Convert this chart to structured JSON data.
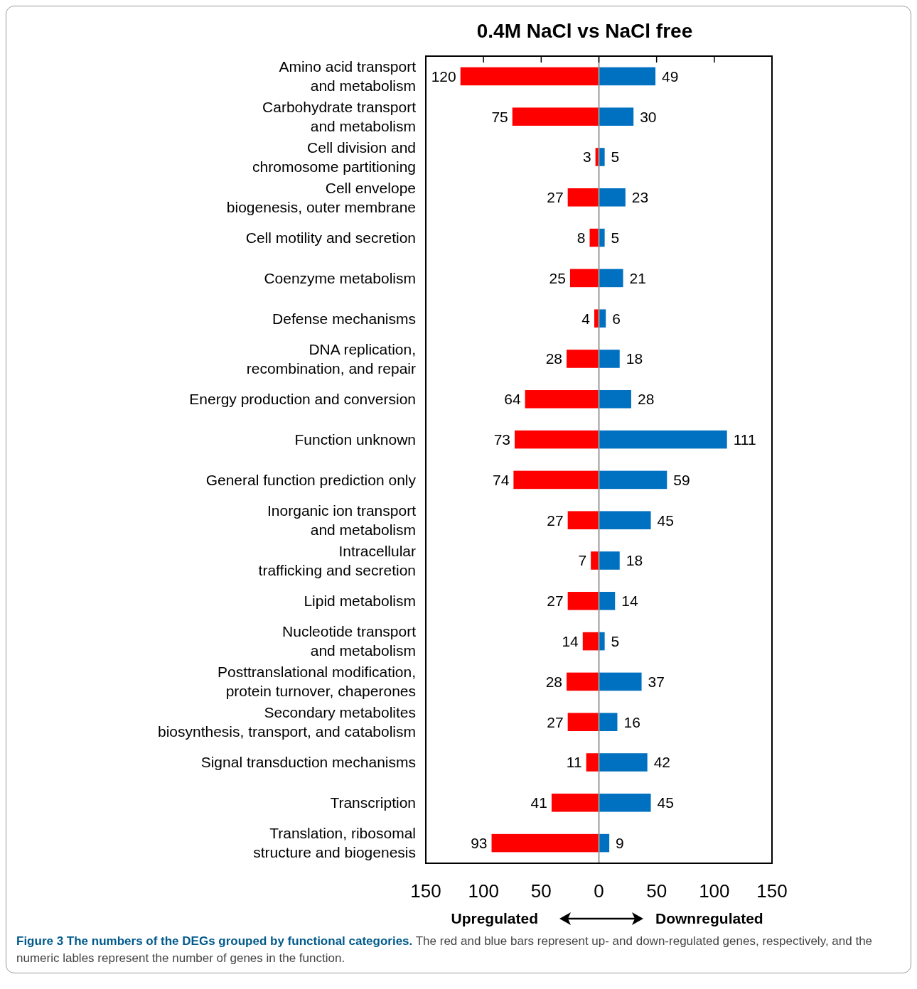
{
  "chart_data": {
    "type": "bar",
    "orientation": "horizontal",
    "title": "0.4M NaCl vs NaCl free",
    "categories": [
      "Amino acid transport and metabolism",
      "Carbohydrate transport and metabolism",
      "Cell division and chromosome partitioning",
      "Cell envelope biogenesis, outer membrane",
      "Cell motility and secretion",
      "Coenzyme metabolism",
      "Defense mechanisms",
      "DNA replication, recombination, and repair",
      "Energy production and conversion",
      "Function unknown",
      "General function prediction only",
      "Inorganic ion transport and metabolism",
      "Intracellular trafficking and secretion",
      "Lipid metabolism",
      "Nucleotide transport and metabolism",
      "Posttranslational modification, protein turnover, chaperones",
      "Secondary metabolites biosynthesis, transport, and catabolism",
      "Signal transduction mechanisms",
      "Transcription",
      "Translation, ribosomal structure and biogenesis"
    ],
    "series": [
      {
        "color": "#ff0000",
        "values": [
          120,
          75,
          3,
          27,
          8,
          25,
          4,
          28,
          64,
          73,
          74,
          27,
          7,
          27,
          14,
          28,
          27,
          11,
          41,
          93
        ],
        "base": [
          -120,
          -75,
          -3,
          -27,
          -8,
          -25,
          -4,
          -28,
          -64,
          -73,
          -74,
          -27,
          -7,
          -27,
          -14,
          -28,
          -27,
          -11,
          -41,
          -93
        ]
      },
      {
        "color": "#0070c0",
        "values": [
          49,
          30,
          5,
          23,
          5,
          21,
          6,
          18,
          28,
          111,
          59,
          45,
          18,
          14,
          5,
          37,
          16,
          42,
          45,
          9
        ]
      }
    ],
    "data_labels": true,
    "xlim": [
      -150,
      150
    ],
    "xticks": [
      {
        "value": -150,
        "label": "150"
      },
      {
        "value": -100,
        "label": "100"
      },
      {
        "value": -50,
        "label": "50"
      },
      0,
      50,
      100,
      150
    ],
    "ref_lines": [
      {
        "axis": "x",
        "value": 0,
        "color": "#999999"
      }
    ],
    "grid": false,
    "annotations": [
      "Upregulated",
      "Downregulated",
      "Figure 3 The numbers of the DEGs grouped by functional categories.",
      "The red and blue bars represent up- and down-regulated genes, respectively, and the numeric lables represent the number of genes in the function."
    ]
  }
}
